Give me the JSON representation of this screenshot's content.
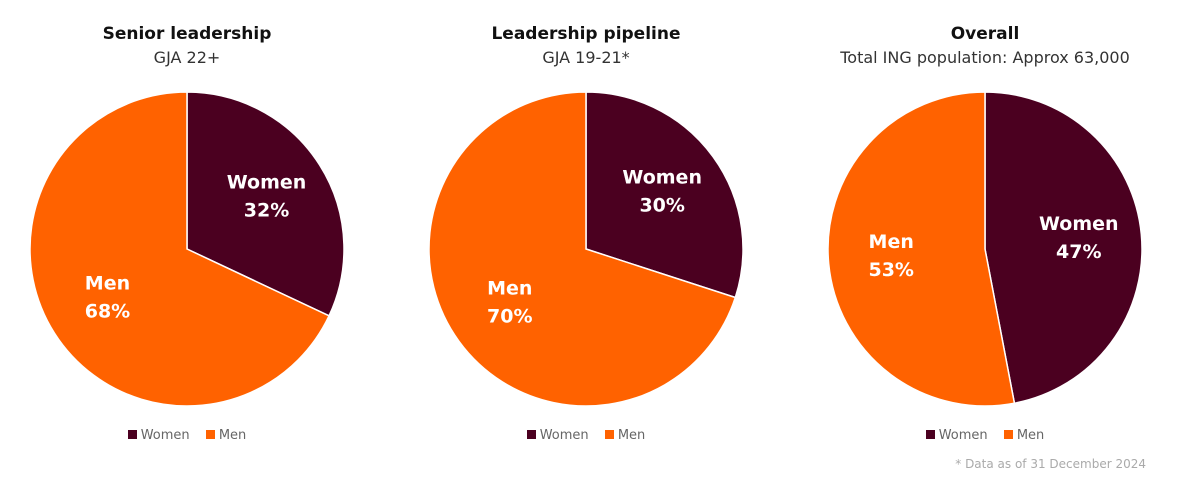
{
  "colors": {
    "women": "#4b0020",
    "men": "#ff6200"
  },
  "chart_data": [
    {
      "type": "pie",
      "title": "Senior leadership",
      "subtitle": "GJA 22+",
      "slices": [
        {
          "label": "Women",
          "value": 32,
          "text": "32%"
        },
        {
          "label": "Men",
          "value": 68,
          "text": "68%"
        }
      ],
      "legend": [
        "Women",
        "Men"
      ],
      "legend_position": "bottom"
    },
    {
      "type": "pie",
      "title": "Leadership pipeline",
      "subtitle": "GJA 19-21*",
      "slices": [
        {
          "label": "Women",
          "value": 30,
          "text": "30%"
        },
        {
          "label": "Men",
          "value": 70,
          "text": "70%"
        }
      ],
      "legend": [
        "Women",
        "Men"
      ],
      "legend_position": "bottom"
    },
    {
      "type": "pie",
      "title": "Overall",
      "subtitle": "Total ING population: Approx 63,000",
      "slices": [
        {
          "label": "Women",
          "value": 47,
          "text": "47%"
        },
        {
          "label": "Men",
          "value": 53,
          "text": "53%"
        }
      ],
      "legend": [
        "Women",
        "Men"
      ],
      "legend_position": "bottom"
    }
  ],
  "footnote": "* Data as of 31 December 2024"
}
